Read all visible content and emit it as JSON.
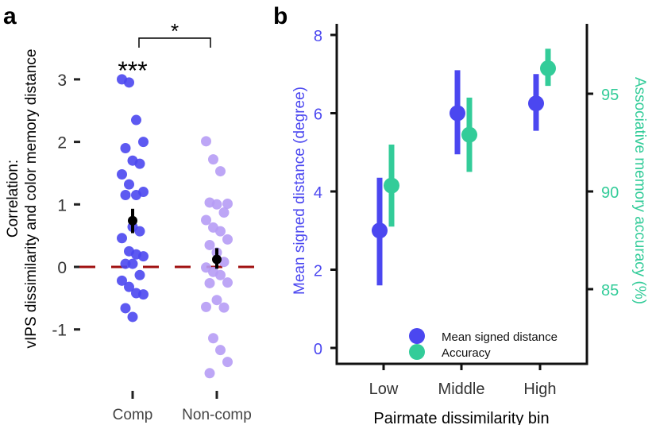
{
  "colors": {
    "comp": "#4b47f0",
    "noncomp": "#b69cf5",
    "mean": "#000000",
    "zero": "#a01010",
    "msd": "#4b47f0",
    "acc": "#33cc99"
  },
  "chart_data": [
    {
      "panel_label": "a",
      "type": "scatter",
      "ylabel_line1": "Correlation:",
      "ylabel_line2": "vIPS dissimilarity and color memory distance",
      "categories": [
        "Comp",
        "Non-comp"
      ],
      "yticks": [
        "-1",
        "0",
        "1",
        "2",
        "3"
      ],
      "ylim": [
        -1.8,
        3.1
      ],
      "reference_line": 0,
      "series": [
        {
          "name": "Comp",
          "points": [
            3.0,
            2.95,
            2.35,
            2.0,
            1.9,
            1.7,
            1.65,
            1.48,
            1.32,
            1.15,
            1.2,
            1.15,
            0.64,
            0.57,
            0.46,
            0.25,
            0.2,
            0.17,
            0.05,
            0.05,
            -0.13,
            -0.22,
            -0.32,
            -0.42,
            -0.44,
            -0.66,
            -0.8
          ],
          "mean": 0.74,
          "ci": [
            0.54,
            0.93
          ],
          "significance": "***"
        },
        {
          "name": "Non-comp",
          "points": [
            2.01,
            1.72,
            1.53,
            1.01,
            1.03,
            1.0,
            0.87,
            0.75,
            0.63,
            0.57,
            0.44,
            0.35,
            0.23,
            0.08,
            -0.01,
            -0.08,
            -0.13,
            -0.25,
            -0.26,
            -0.53,
            -0.65,
            -0.64,
            -1.14,
            -1.33,
            -1.52,
            -1.7
          ],
          "mean": 0.12,
          "ci": [
            -0.03,
            0.3
          ]
        }
      ],
      "comparison": {
        "label": "*"
      }
    },
    {
      "panel_label": "b",
      "type": "line",
      "xlabel": "Pairmate dissimilarity bin",
      "ylabel": "Mean signed distance (degree)",
      "ylabel_right": "Associative memory accuracy (%)",
      "categories": [
        "Low",
        "Middle",
        "High"
      ],
      "yticks": [
        "0",
        "2",
        "4",
        "6",
        "8"
      ],
      "ylim": [
        0,
        8
      ],
      "yticks_right": [
        "85",
        "90",
        "95"
      ],
      "ylim_right": [
        82,
        98
      ],
      "legend": "bottom-right",
      "series": [
        {
          "name": "Mean signed distance",
          "axis": "left",
          "values": [
            3.0,
            6.0,
            6.25
          ],
          "lower": [
            1.6,
            4.95,
            5.55
          ],
          "upper": [
            4.35,
            7.1,
            7.0
          ]
        },
        {
          "name": "Accuracy",
          "axis": "right",
          "values": [
            90.3,
            92.9,
            96.3
          ],
          "lower": [
            88.2,
            91.0,
            95.4
          ],
          "upper": [
            92.4,
            94.8,
            97.3
          ]
        }
      ]
    }
  ]
}
